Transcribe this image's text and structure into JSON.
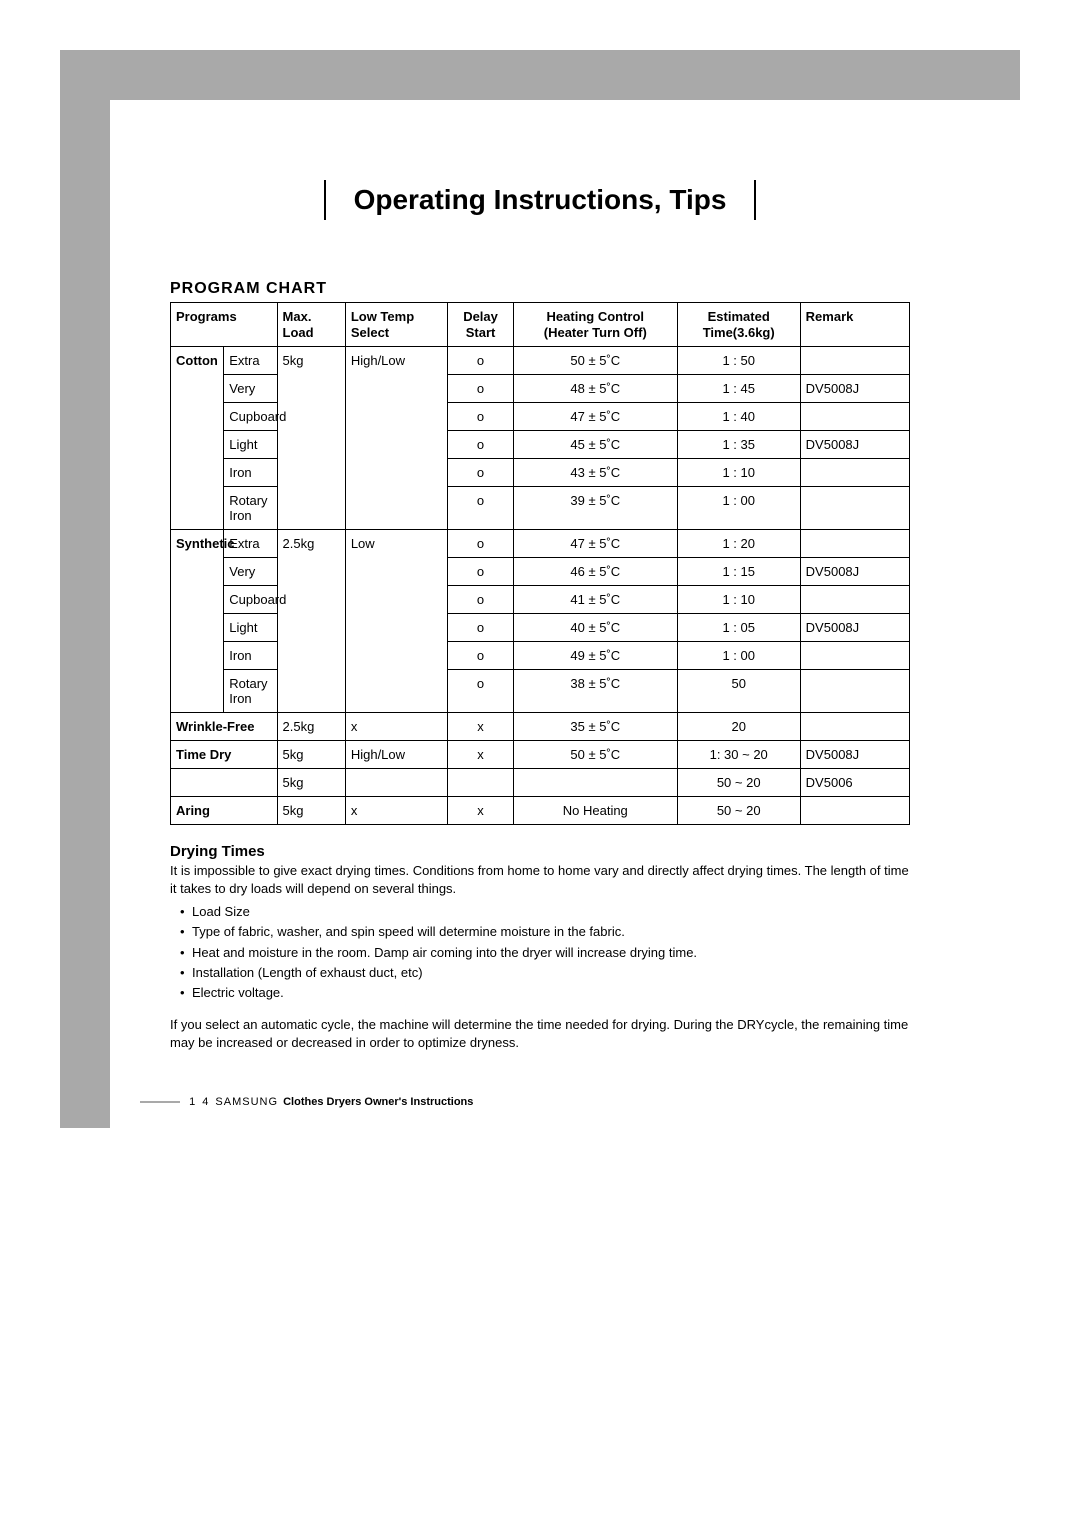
{
  "page_title": "Operating Instructions, Tips",
  "section_program_chart": "PROGRAM CHART",
  "table": {
    "headers": {
      "programs": "Programs",
      "max_load": "Max.\nLoad",
      "low_temp": "Low Temp\nSelect",
      "delay": "Delay\nStart",
      "heating": "Heating Control\n(Heater Turn Off)",
      "estimated": "Estimated\nTime(3.6kg)",
      "remark": "Remark"
    },
    "groups": [
      {
        "name": "Cotton",
        "bold": true,
        "load": "5kg",
        "temp": "High/Low",
        "rows": [
          {
            "sub": "Extra",
            "delay": "o",
            "heat": "50 ± 5˚C",
            "time": "1 : 50",
            "remark": ""
          },
          {
            "sub": "Very",
            "delay": "o",
            "heat": "48 ± 5˚C",
            "time": "1 : 45",
            "remark": "DV5008J"
          },
          {
            "sub": "Cupboard",
            "delay": "o",
            "heat": "47 ± 5˚C",
            "time": "1 : 40",
            "remark": ""
          },
          {
            "sub": "Light",
            "delay": "o",
            "heat": "45 ± 5˚C",
            "time": "1 : 35",
            "remark": "DV5008J"
          },
          {
            "sub": "Iron",
            "delay": "o",
            "heat": "43 ± 5˚C",
            "time": "1 : 10",
            "remark": ""
          },
          {
            "sub": "Rotary Iron",
            "delay": "o",
            "heat": "39 ± 5˚C",
            "time": "1 : 00",
            "remark": ""
          }
        ]
      },
      {
        "name": "Synthetic",
        "bold": true,
        "load": "2.5kg",
        "temp": "Low",
        "rows": [
          {
            "sub": "Extra",
            "delay": "o",
            "heat": "47 ± 5˚C",
            "time": "1 : 20",
            "remark": ""
          },
          {
            "sub": "Very",
            "delay": "o",
            "heat": "46 ± 5˚C",
            "time": "1 : 15",
            "remark": "DV5008J"
          },
          {
            "sub": "Cupboard",
            "delay": "o",
            "heat": "41 ± 5˚C",
            "time": "1 : 10",
            "remark": ""
          },
          {
            "sub": "Light",
            "delay": "o",
            "heat": "40 ± 5˚C",
            "time": "1 : 05",
            "remark": "DV5008J"
          },
          {
            "sub": "Iron",
            "delay": "o",
            "heat": "49 ± 5˚C",
            "time": "1 : 00",
            "remark": ""
          },
          {
            "sub": "Rotary Iron",
            "delay": "o",
            "heat": "38 ± 5˚C",
            "time": "50",
            "remark": ""
          }
        ]
      }
    ],
    "single_rows": [
      {
        "name": "Wrinkle-Free",
        "bold": true,
        "load": "2.5kg",
        "temp": "x",
        "delay": "x",
        "heat": "35 ± 5˚C",
        "time": "20",
        "remark": ""
      },
      {
        "name": "Time Dry",
        "bold": true,
        "load": "5kg",
        "temp": "High/Low",
        "delay": "x",
        "heat": "50 ± 5˚C",
        "time": "1: 30 ~ 20",
        "remark": "DV5008J"
      },
      {
        "name": "",
        "bold": false,
        "load": "5kg",
        "temp": "",
        "delay": "",
        "heat": "",
        "time": "50 ~ 20",
        "remark": "DV5006"
      },
      {
        "name": "Aring",
        "bold": true,
        "load": "5kg",
        "temp": "x",
        "delay": "x",
        "heat": "No Heating",
        "time": "50 ~ 20",
        "remark": ""
      }
    ]
  },
  "drying_times": {
    "heading": "Drying Times",
    "intro": "It is impossible to give exact drying times. Conditions from home to home vary and directly affect drying times. The length of time it takes to dry loads will depend on several things.",
    "bullets": [
      "Load Size",
      "Type of fabric, washer, and spin speed will determine moisture in the fabric.",
      "Heat and moisture in the room. Damp air coming into the dryer will increase drying time.",
      "Installation (Length of exhaust duct, etc)",
      "Electric voltage."
    ],
    "auto_text": "If you select an automatic cycle, the machine will determine the time needed for drying. During the DRYcycle, the remaining time may be increased or decreased in order to optimize dryness."
  },
  "footer": {
    "page_number": "1 4",
    "brand": "SAMSUNG",
    "text": "Clothes Dryers Owner's Instructions"
  }
}
